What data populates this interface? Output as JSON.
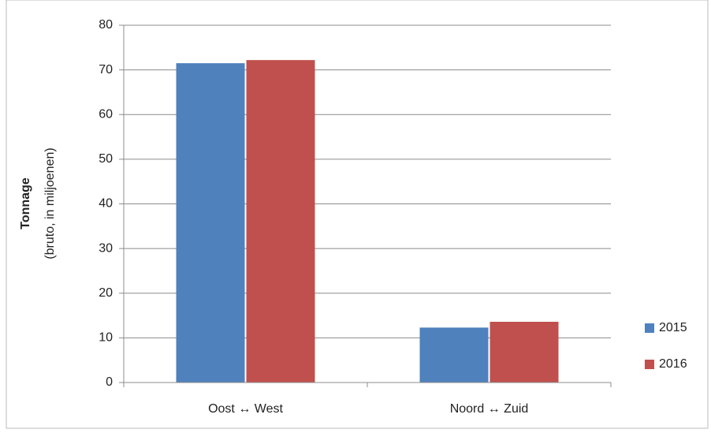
{
  "chart_data": {
    "type": "bar",
    "y_axis_title": "Tonnage",
    "y_axis_subtitle": "(bruto, in miljoenen)",
    "categories": [
      "Oost ↔ West",
      "Noord ↔ Zuid"
    ],
    "series": [
      {
        "name": "2015",
        "color": "#4f81bd",
        "values": [
          71.5,
          12.3
        ]
      },
      {
        "name": "2016",
        "color": "#c0504d",
        "values": [
          72.2,
          13.6
        ]
      }
    ],
    "ylim": [
      0,
      80
    ],
    "yticks": [
      0,
      10,
      20,
      30,
      40,
      50,
      60,
      70,
      80
    ],
    "grid": true,
    "legend": "right"
  }
}
